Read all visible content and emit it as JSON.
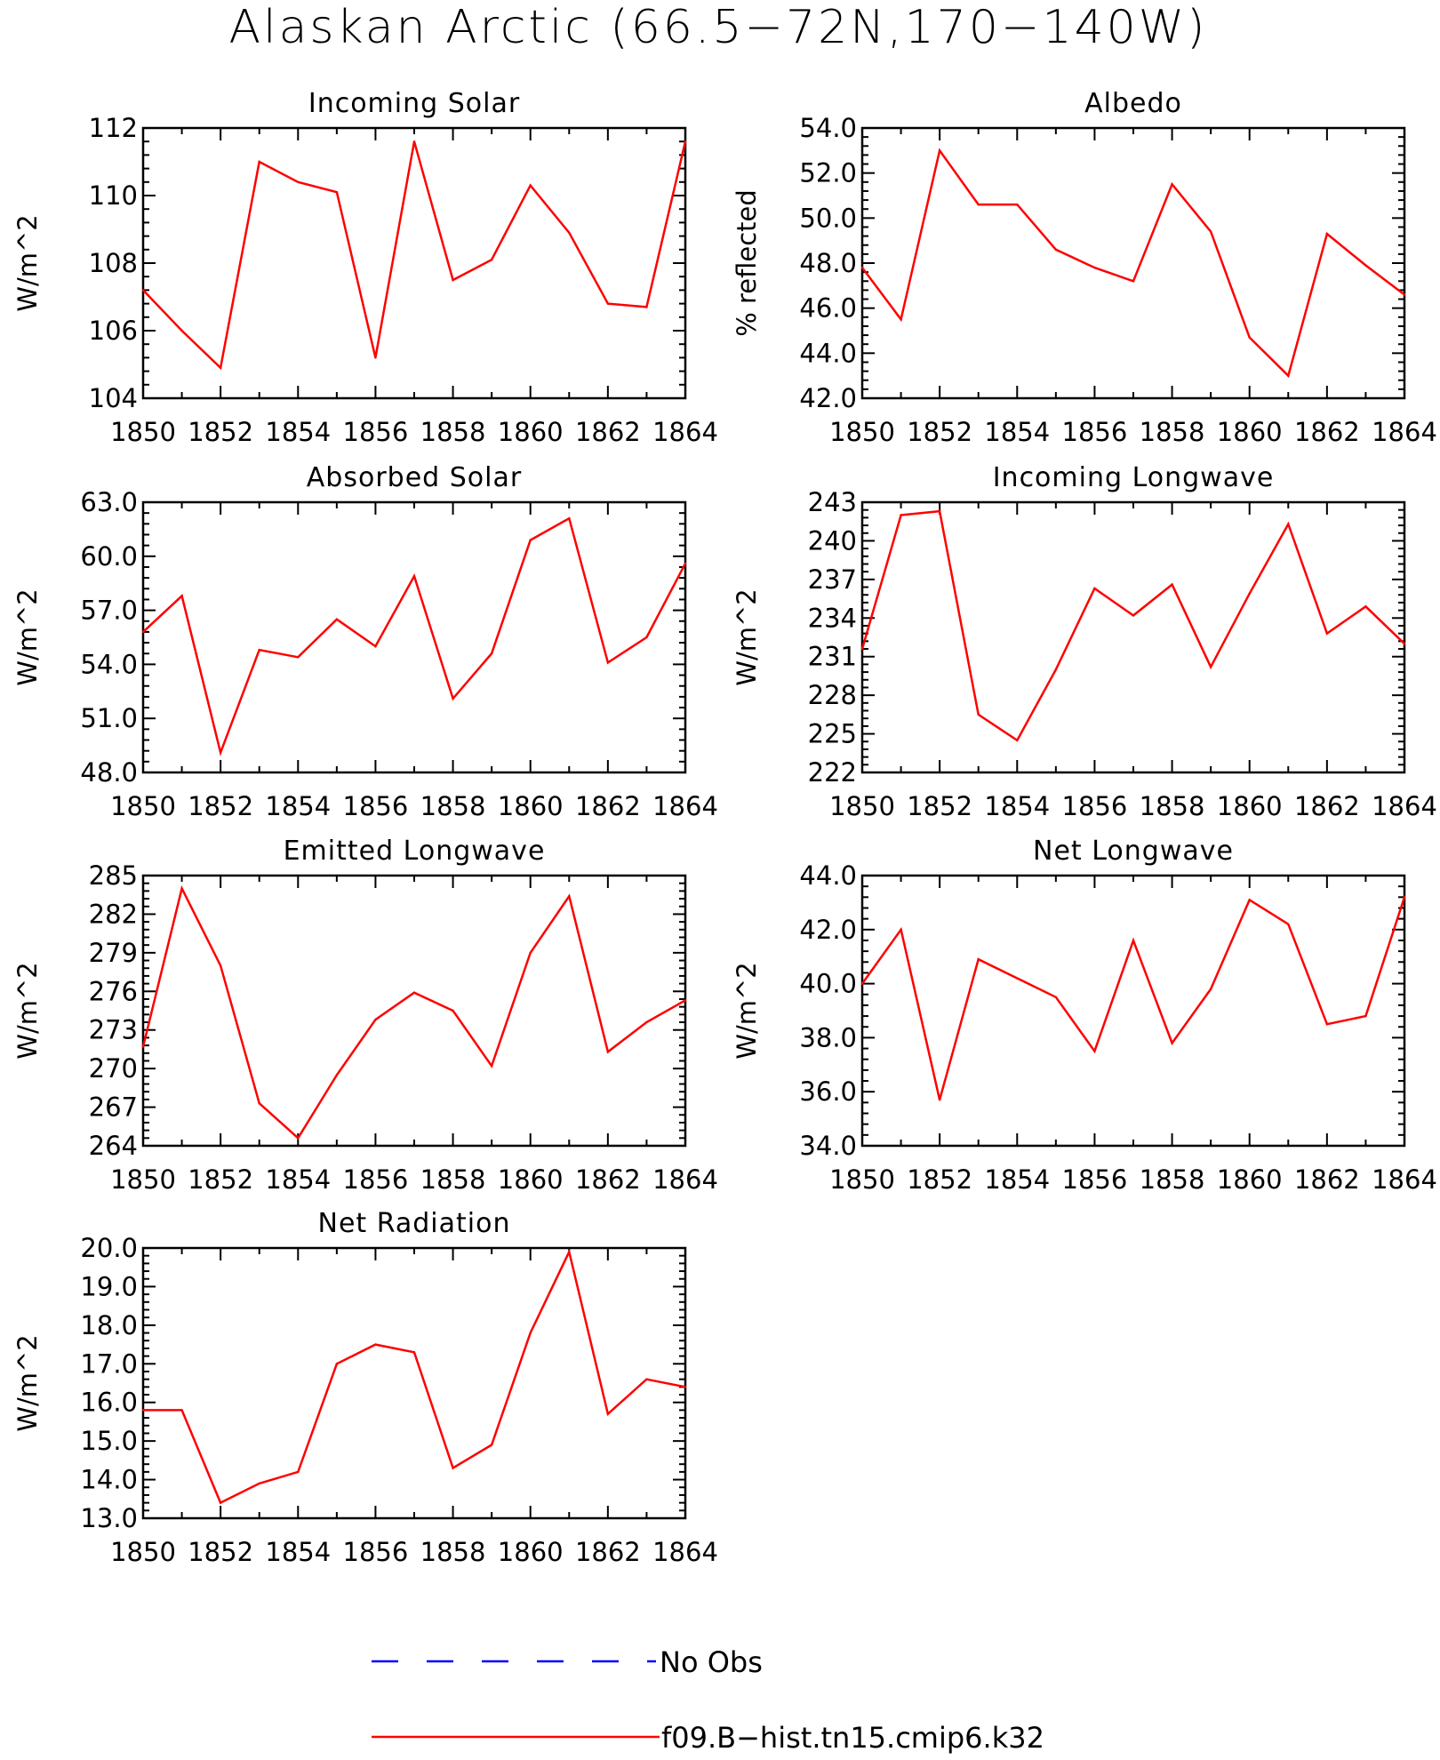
{
  "figure": {
    "title": "Alaskan Arctic (66.5−72N,170−140W)"
  },
  "colors": {
    "model": "#ff0000",
    "obs": "#0000ff",
    "axis": "#000000"
  },
  "legend": {
    "entries": [
      {
        "label": "No Obs",
        "style": "dashed",
        "color": "#0000ff"
      },
      {
        "label": "f09.B−hist.tn15.cmip6.k32",
        "style": "solid",
        "color": "#ff0000"
      }
    ]
  },
  "chart_data": [
    {
      "type": "line",
      "title": "Incoming Solar",
      "xlabel": "",
      "ylabel": "W/m^2",
      "x": [
        1850,
        1851,
        1852,
        1853,
        1854,
        1855,
        1856,
        1857,
        1858,
        1859,
        1860,
        1861,
        1862,
        1863,
        1864
      ],
      "xlim": [
        1850,
        1864
      ],
      "xticks": [
        "1850",
        "1852",
        "1854",
        "1856",
        "1858",
        "1860",
        "1862",
        "1864"
      ],
      "ylim": [
        104,
        112
      ],
      "yticks": [
        "104",
        "106",
        "108",
        "110",
        "112"
      ],
      "series": [
        {
          "values": [
            107.2,
            106.0,
            104.9,
            111.0,
            110.4,
            110.1,
            105.2,
            111.6,
            107.5,
            108.1,
            110.3,
            108.9,
            106.8,
            106.7,
            111.6
          ]
        }
      ]
    },
    {
      "type": "line",
      "title": "Albedo",
      "xlabel": "",
      "ylabel": "% reflected",
      "x": [
        1850,
        1851,
        1852,
        1853,
        1854,
        1855,
        1856,
        1857,
        1858,
        1859,
        1860,
        1861,
        1862,
        1863,
        1864
      ],
      "xlim": [
        1850,
        1864
      ],
      "xticks": [
        "1850",
        "1852",
        "1854",
        "1856",
        "1858",
        "1860",
        "1862",
        "1864"
      ],
      "ylim": [
        42,
        54
      ],
      "yticks": [
        "42.0",
        "44.0",
        "46.0",
        "48.0",
        "50.0",
        "52.0",
        "54.0"
      ],
      "series": [
        {
          "values": [
            47.8,
            45.5,
            53.0,
            50.6,
            50.6,
            48.6,
            47.8,
            47.2,
            51.5,
            49.4,
            44.7,
            43.0,
            49.3,
            47.9,
            46.6
          ]
        }
      ]
    },
    {
      "type": "line",
      "title": "Absorbed Solar",
      "xlabel": "",
      "ylabel": "W/m^2",
      "x": [
        1850,
        1851,
        1852,
        1853,
        1854,
        1855,
        1856,
        1857,
        1858,
        1859,
        1860,
        1861,
        1862,
        1863,
        1864
      ],
      "xlim": [
        1850,
        1864
      ],
      "xticks": [
        "1850",
        "1852",
        "1854",
        "1856",
        "1858",
        "1860",
        "1862",
        "1864"
      ],
      "ylim": [
        48,
        63
      ],
      "yticks": [
        "48.0",
        "51.0",
        "54.0",
        "57.0",
        "60.0",
        "63.0"
      ],
      "series": [
        {
          "values": [
            55.8,
            57.8,
            49.1,
            54.8,
            54.4,
            56.5,
            55.0,
            58.9,
            52.1,
            54.6,
            60.9,
            62.1,
            54.1,
            55.5,
            59.6
          ]
        }
      ]
    },
    {
      "type": "line",
      "title": "Incoming Longwave",
      "xlabel": "",
      "ylabel": "W/m^2",
      "x": [
        1850,
        1851,
        1852,
        1853,
        1854,
        1855,
        1856,
        1857,
        1858,
        1859,
        1860,
        1861,
        1862,
        1863,
        1864
      ],
      "xlim": [
        1850,
        1864
      ],
      "xticks": [
        "1850",
        "1852",
        "1854",
        "1856",
        "1858",
        "1860",
        "1862",
        "1864"
      ],
      "ylim": [
        222,
        243
      ],
      "yticks": [
        "222",
        "225",
        "228",
        "231",
        "234",
        "237",
        "240",
        "243"
      ],
      "series": [
        {
          "values": [
            231.6,
            242.0,
            242.3,
            226.5,
            224.5,
            230.0,
            236.3,
            234.2,
            236.6,
            230.2,
            235.9,
            241.3,
            232.8,
            234.9,
            232.0
          ]
        }
      ]
    },
    {
      "type": "line",
      "title": "Emitted Longwave",
      "xlabel": "",
      "ylabel": "W/m^2",
      "x": [
        1850,
        1851,
        1852,
        1853,
        1854,
        1855,
        1856,
        1857,
        1858,
        1859,
        1860,
        1861,
        1862,
        1863,
        1864
      ],
      "xlim": [
        1850,
        1864
      ],
      "xticks": [
        "1850",
        "1852",
        "1854",
        "1856",
        "1858",
        "1860",
        "1862",
        "1864"
      ],
      "ylim": [
        264,
        285
      ],
      "yticks": [
        "264",
        "267",
        "270",
        "273",
        "276",
        "279",
        "282",
        "285"
      ],
      "series": [
        {
          "values": [
            271.7,
            284.0,
            278.0,
            267.3,
            264.6,
            269.5,
            273.8,
            275.9,
            274.5,
            270.2,
            279.0,
            283.4,
            271.3,
            273.6,
            275.3
          ]
        }
      ]
    },
    {
      "type": "line",
      "title": "Net Longwave",
      "xlabel": "",
      "ylabel": "W/m^2",
      "x": [
        1850,
        1851,
        1852,
        1853,
        1854,
        1855,
        1856,
        1857,
        1858,
        1859,
        1860,
        1861,
        1862,
        1863,
        1864
      ],
      "xlim": [
        1850,
        1864
      ],
      "xticks": [
        "1850",
        "1852",
        "1854",
        "1856",
        "1858",
        "1860",
        "1862",
        "1864"
      ],
      "ylim": [
        34,
        44
      ],
      "yticks": [
        "34.0",
        "36.0",
        "38.0",
        "40.0",
        "42.0",
        "44.0"
      ],
      "series": [
        {
          "values": [
            40.0,
            42.0,
            35.7,
            40.9,
            40.2,
            39.5,
            37.5,
            41.6,
            37.8,
            39.8,
            43.1,
            42.2,
            38.5,
            38.8,
            43.2
          ]
        }
      ]
    },
    {
      "type": "line",
      "title": "Net Radiation",
      "xlabel": "",
      "ylabel": "W/m^2",
      "x": [
        1850,
        1851,
        1852,
        1853,
        1854,
        1855,
        1856,
        1857,
        1858,
        1859,
        1860,
        1861,
        1862,
        1863,
        1864
      ],
      "xlim": [
        1850,
        1864
      ],
      "xticks": [
        "1850",
        "1852",
        "1854",
        "1856",
        "1858",
        "1860",
        "1862",
        "1864"
      ],
      "ylim": [
        13,
        20
      ],
      "yticks": [
        "13.0",
        "14.0",
        "15.0",
        "16.0",
        "17.0",
        "18.0",
        "19.0",
        "20.0"
      ],
      "series": [
        {
          "values": [
            15.8,
            15.8,
            13.4,
            13.9,
            14.2,
            17.0,
            17.5,
            17.3,
            14.3,
            14.9,
            17.8,
            19.9,
            15.7,
            16.6,
            16.4
          ]
        }
      ]
    }
  ]
}
